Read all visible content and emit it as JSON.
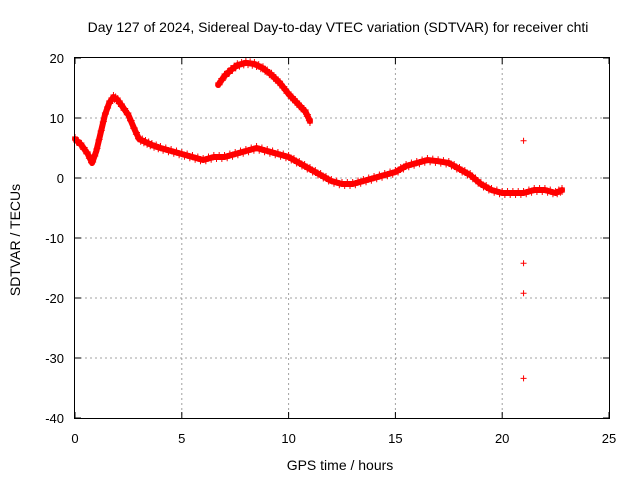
{
  "chart_data": {
    "type": "scatter",
    "title": "Day 127 of 2024, Sidereal Day-to-day VTEC variation (SDTVAR) for receiver chti",
    "xlabel": "GPS time / hours",
    "ylabel": "SDTVAR / TECUs",
    "xlim": [
      0,
      25
    ],
    "ylim": [
      -40,
      20
    ],
    "xticks": [
      "0",
      "5",
      "10",
      "15",
      "20",
      "25"
    ],
    "yticks": [
      "20",
      "10",
      "0",
      "-10",
      "-20",
      "-30",
      "-40"
    ],
    "grid": true,
    "marker": "+",
    "colors": {
      "series": "#ff0000",
      "grid": "#a0a0a0",
      "axes": "#000000"
    },
    "series": [
      {
        "name": "main",
        "x": [
          0.0,
          0.3,
          0.6,
          0.8,
          1.0,
          1.2,
          1.4,
          1.6,
          1.8,
          2.0,
          2.2,
          2.5,
          2.8,
          3.0,
          3.3,
          3.6,
          4.0,
          4.5,
          5.0,
          5.5,
          6.0,
          6.5,
          7.0,
          7.5,
          8.0,
          8.5,
          9.0,
          9.5,
          10.0,
          10.5,
          11.0,
          11.5,
          12.0,
          12.5,
          13.0,
          13.5,
          14.0,
          14.5,
          15.0,
          15.5,
          16.0,
          16.5,
          17.0,
          17.5,
          18.0,
          18.5,
          19.0,
          19.5,
          20.0,
          20.5,
          21.0,
          21.5,
          22.0,
          22.5,
          22.8
        ],
        "y": [
          6.5,
          5.5,
          4.0,
          2.5,
          4.5,
          7.5,
          10.5,
          12.5,
          13.5,
          13.0,
          12.0,
          10.5,
          8.0,
          6.5,
          6.0,
          5.5,
          5.0,
          4.5,
          4.0,
          3.5,
          3.0,
          3.5,
          3.5,
          4.0,
          4.5,
          5.0,
          4.5,
          4.0,
          3.5,
          2.5,
          1.5,
          0.5,
          -0.5,
          -1.0,
          -1.0,
          -0.5,
          0.0,
          0.5,
          1.0,
          2.0,
          2.5,
          3.0,
          2.8,
          2.5,
          1.5,
          0.5,
          -1.0,
          -2.0,
          -2.5,
          -2.5,
          -2.5,
          -2.0,
          -2.0,
          -2.5,
          -2.0
        ]
      },
      {
        "name": "arc",
        "x": [
          6.7,
          7.0,
          7.3,
          7.6,
          8.0,
          8.4,
          8.8,
          9.2,
          9.6,
          10.0,
          10.4,
          10.8,
          11.0
        ],
        "y": [
          15.5,
          17.0,
          18.0,
          18.8,
          19.2,
          19.0,
          18.3,
          17.2,
          15.8,
          14.0,
          12.5,
          11.0,
          9.5
        ]
      },
      {
        "name": "outliers",
        "x": [
          21.0,
          21.0,
          21.0,
          21.0
        ],
        "y": [
          6.2,
          -14.2,
          -19.2,
          -33.4
        ]
      }
    ]
  }
}
